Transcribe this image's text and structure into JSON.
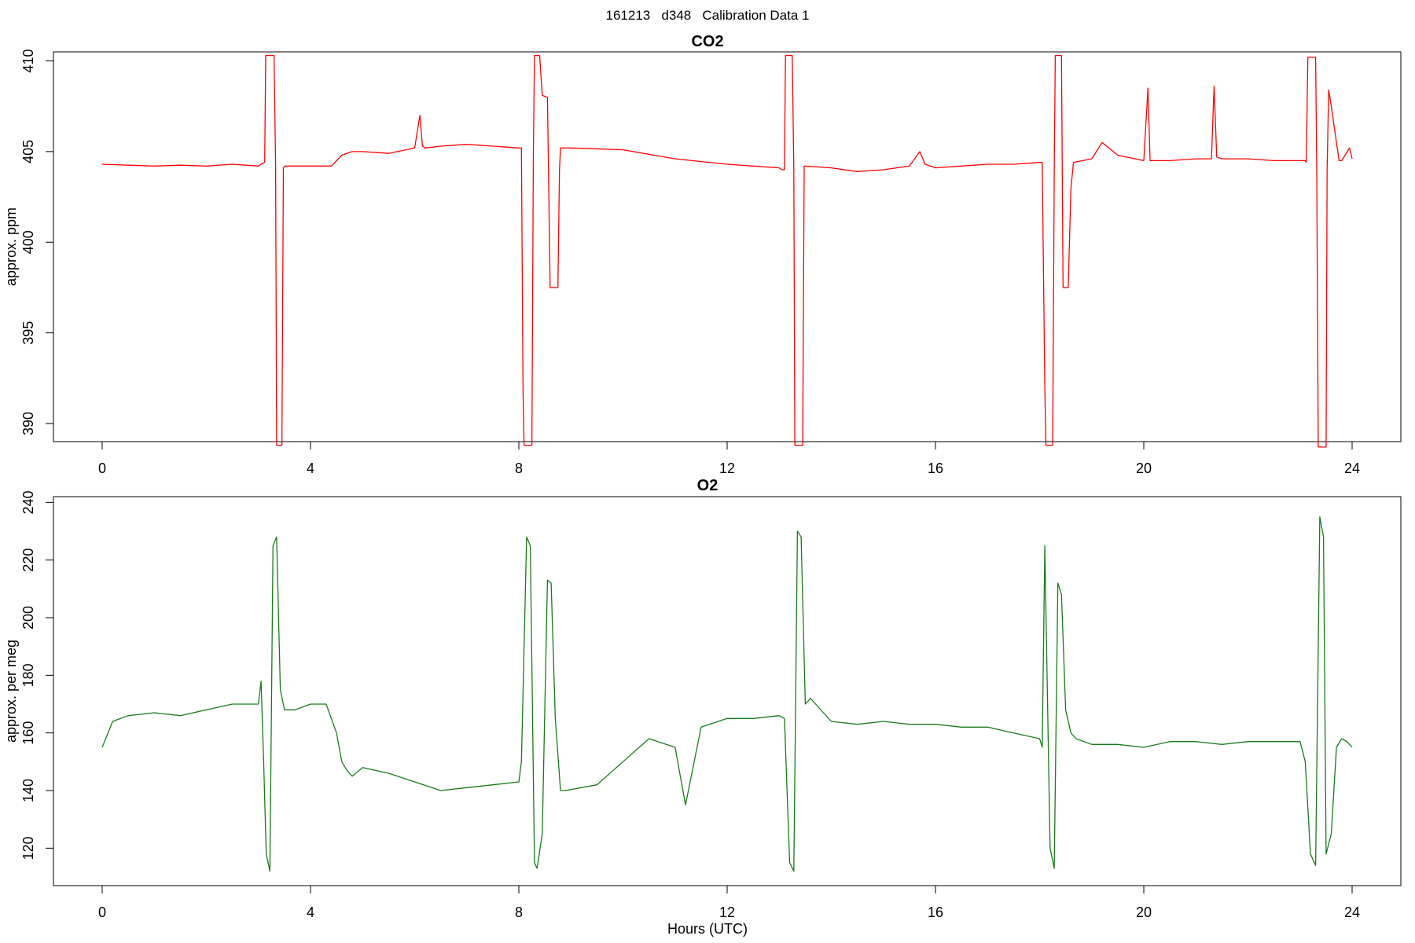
{
  "figure": {
    "suptitle": "161213   d348   Calibration Data 1",
    "xlabel": "Hours (UTC)"
  },
  "chart_data": [
    {
      "type": "line",
      "title": "CO2",
      "xlabel": "",
      "ylabel": "approx. ppm",
      "xlim": [
        0,
        24
      ],
      "ylim": [
        389,
        410.5
      ],
      "xticks": [
        0,
        4,
        8,
        12,
        16,
        20,
        24
      ],
      "yticks": [
        390,
        395,
        400,
        405,
        410
      ],
      "grid": false,
      "color": "#ff0000",
      "series": [
        {
          "x": [
            0.0,
            0.5,
            1.0,
            1.5,
            2.0,
            2.5,
            3.0,
            3.05,
            3.12,
            3.14,
            3.3,
            3.33,
            3.35,
            3.45,
            3.48,
            3.5,
            4.0,
            4.4,
            4.6,
            4.8,
            5.0,
            5.5,
            6.0,
            6.1,
            6.15,
            6.2,
            6.5,
            7.0,
            7.5,
            8.0,
            8.05,
            8.08,
            8.1,
            8.25,
            8.28,
            8.3,
            8.4,
            8.45,
            8.55,
            8.6,
            8.75,
            8.78,
            8.8,
            9.0,
            10.0,
            11.0,
            12.0,
            12.5,
            13.0,
            13.05,
            13.1,
            13.12,
            13.25,
            13.28,
            13.3,
            13.45,
            13.48,
            13.5,
            14.0,
            14.5,
            15.0,
            15.5,
            15.7,
            15.8,
            16.0,
            16.5,
            17.0,
            17.5,
            18.0,
            18.05,
            18.1,
            18.12,
            18.25,
            18.28,
            18.3,
            18.42,
            18.45,
            18.55,
            18.6,
            18.65,
            19.0,
            19.2,
            19.5,
            20.0,
            20.08,
            20.12,
            20.5,
            21.0,
            21.3,
            21.35,
            21.4,
            21.5,
            22.0,
            22.5,
            23.0,
            23.1,
            23.12,
            23.15,
            23.3,
            23.32,
            23.35,
            23.5,
            23.52,
            23.55,
            23.6,
            23.75,
            23.8,
            23.95,
            24.0
          ],
          "y": [
            404.3,
            404.25,
            404.2,
            404.25,
            404.2,
            404.3,
            404.2,
            404.3,
            404.4,
            410.3,
            410.3,
            404.2,
            388.8,
            388.8,
            404.1,
            404.2,
            404.2,
            404.2,
            404.8,
            405.0,
            405.0,
            404.9,
            405.2,
            407.0,
            405.3,
            405.2,
            405.3,
            405.4,
            405.3,
            405.2,
            405.2,
            392.0,
            388.8,
            388.8,
            405.0,
            410.3,
            410.3,
            408.1,
            408.0,
            397.5,
            397.5,
            404.0,
            405.2,
            405.2,
            405.1,
            404.6,
            404.3,
            404.2,
            404.1,
            404.0,
            404.0,
            410.3,
            410.3,
            404.0,
            388.8,
            388.8,
            404.2,
            404.2,
            404.1,
            403.9,
            404.0,
            404.2,
            405.0,
            404.3,
            404.1,
            404.2,
            404.3,
            404.3,
            404.4,
            404.4,
            392.0,
            388.8,
            388.8,
            404.0,
            410.3,
            410.3,
            397.5,
            397.5,
            403.0,
            404.4,
            404.6,
            405.5,
            404.8,
            404.5,
            408.5,
            404.5,
            404.5,
            404.6,
            404.6,
            408.6,
            404.7,
            404.6,
            404.6,
            404.5,
            404.5,
            404.5,
            404.4,
            410.2,
            410.2,
            404.0,
            388.7,
            388.7,
            404.0,
            408.4,
            407.5,
            404.5,
            404.5,
            405.2,
            404.6
          ]
        }
      ]
    },
    {
      "type": "line",
      "title": "O2",
      "xlabel": "Hours (UTC)",
      "ylabel": "approx. per meg",
      "xlim": [
        0,
        24
      ],
      "ylim": [
        107,
        242
      ],
      "xticks": [
        0,
        4,
        8,
        12,
        16,
        20,
        24
      ],
      "yticks": [
        120,
        140,
        160,
        180,
        200,
        220,
        240
      ],
      "grid": false,
      "color": "#1a7a1a",
      "series": [
        {
          "x": [
            0.0,
            0.2,
            0.5,
            1.0,
            1.5,
            2.0,
            2.5,
            3.0,
            3.05,
            3.1,
            3.15,
            3.22,
            3.28,
            3.35,
            3.42,
            3.5,
            3.7,
            4.0,
            4.3,
            4.5,
            4.6,
            4.7,
            4.8,
            5.0,
            5.5,
            6.0,
            6.5,
            7.0,
            7.5,
            8.0,
            8.05,
            8.15,
            8.22,
            8.3,
            8.35,
            8.45,
            8.55,
            8.62,
            8.7,
            8.8,
            8.9,
            9.2,
            9.5,
            10.0,
            10.5,
            11.0,
            11.2,
            11.5,
            12.0,
            12.5,
            13.0,
            13.1,
            13.2,
            13.28,
            13.35,
            13.42,
            13.5,
            13.6,
            14.0,
            14.5,
            15.0,
            15.5,
            16.0,
            16.5,
            17.0,
            17.5,
            18.0,
            18.05,
            18.1,
            18.2,
            18.28,
            18.35,
            18.42,
            18.5,
            18.6,
            18.7,
            19.0,
            19.5,
            20.0,
            20.5,
            21.0,
            21.5,
            22.0,
            22.5,
            23.0,
            23.1,
            23.2,
            23.3,
            23.38,
            23.45,
            23.5,
            23.6,
            23.7,
            23.8,
            23.9,
            24.0
          ],
          "y": [
            155,
            164,
            166,
            167,
            166,
            168,
            170,
            170,
            178,
            150,
            118,
            112,
            225,
            228,
            175,
            168,
            168,
            170,
            170,
            160,
            150,
            147,
            145,
            148,
            146,
            143,
            140,
            141,
            142,
            143,
            150,
            228,
            225,
            115,
            113,
            125,
            213,
            212,
            165,
            140,
            140,
            141,
            142,
            150,
            158,
            155,
            135,
            162,
            165,
            165,
            166,
            165,
            115,
            112,
            230,
            228,
            170,
            172,
            164,
            163,
            164,
            163,
            163,
            162,
            162,
            160,
            158,
            155,
            225,
            120,
            113,
            212,
            208,
            168,
            160,
            158,
            156,
            156,
            155,
            157,
            157,
            156,
            157,
            157,
            157,
            150,
            118,
            114,
            235,
            228,
            118,
            125,
            155,
            158,
            157,
            155
          ]
        }
      ]
    }
  ]
}
